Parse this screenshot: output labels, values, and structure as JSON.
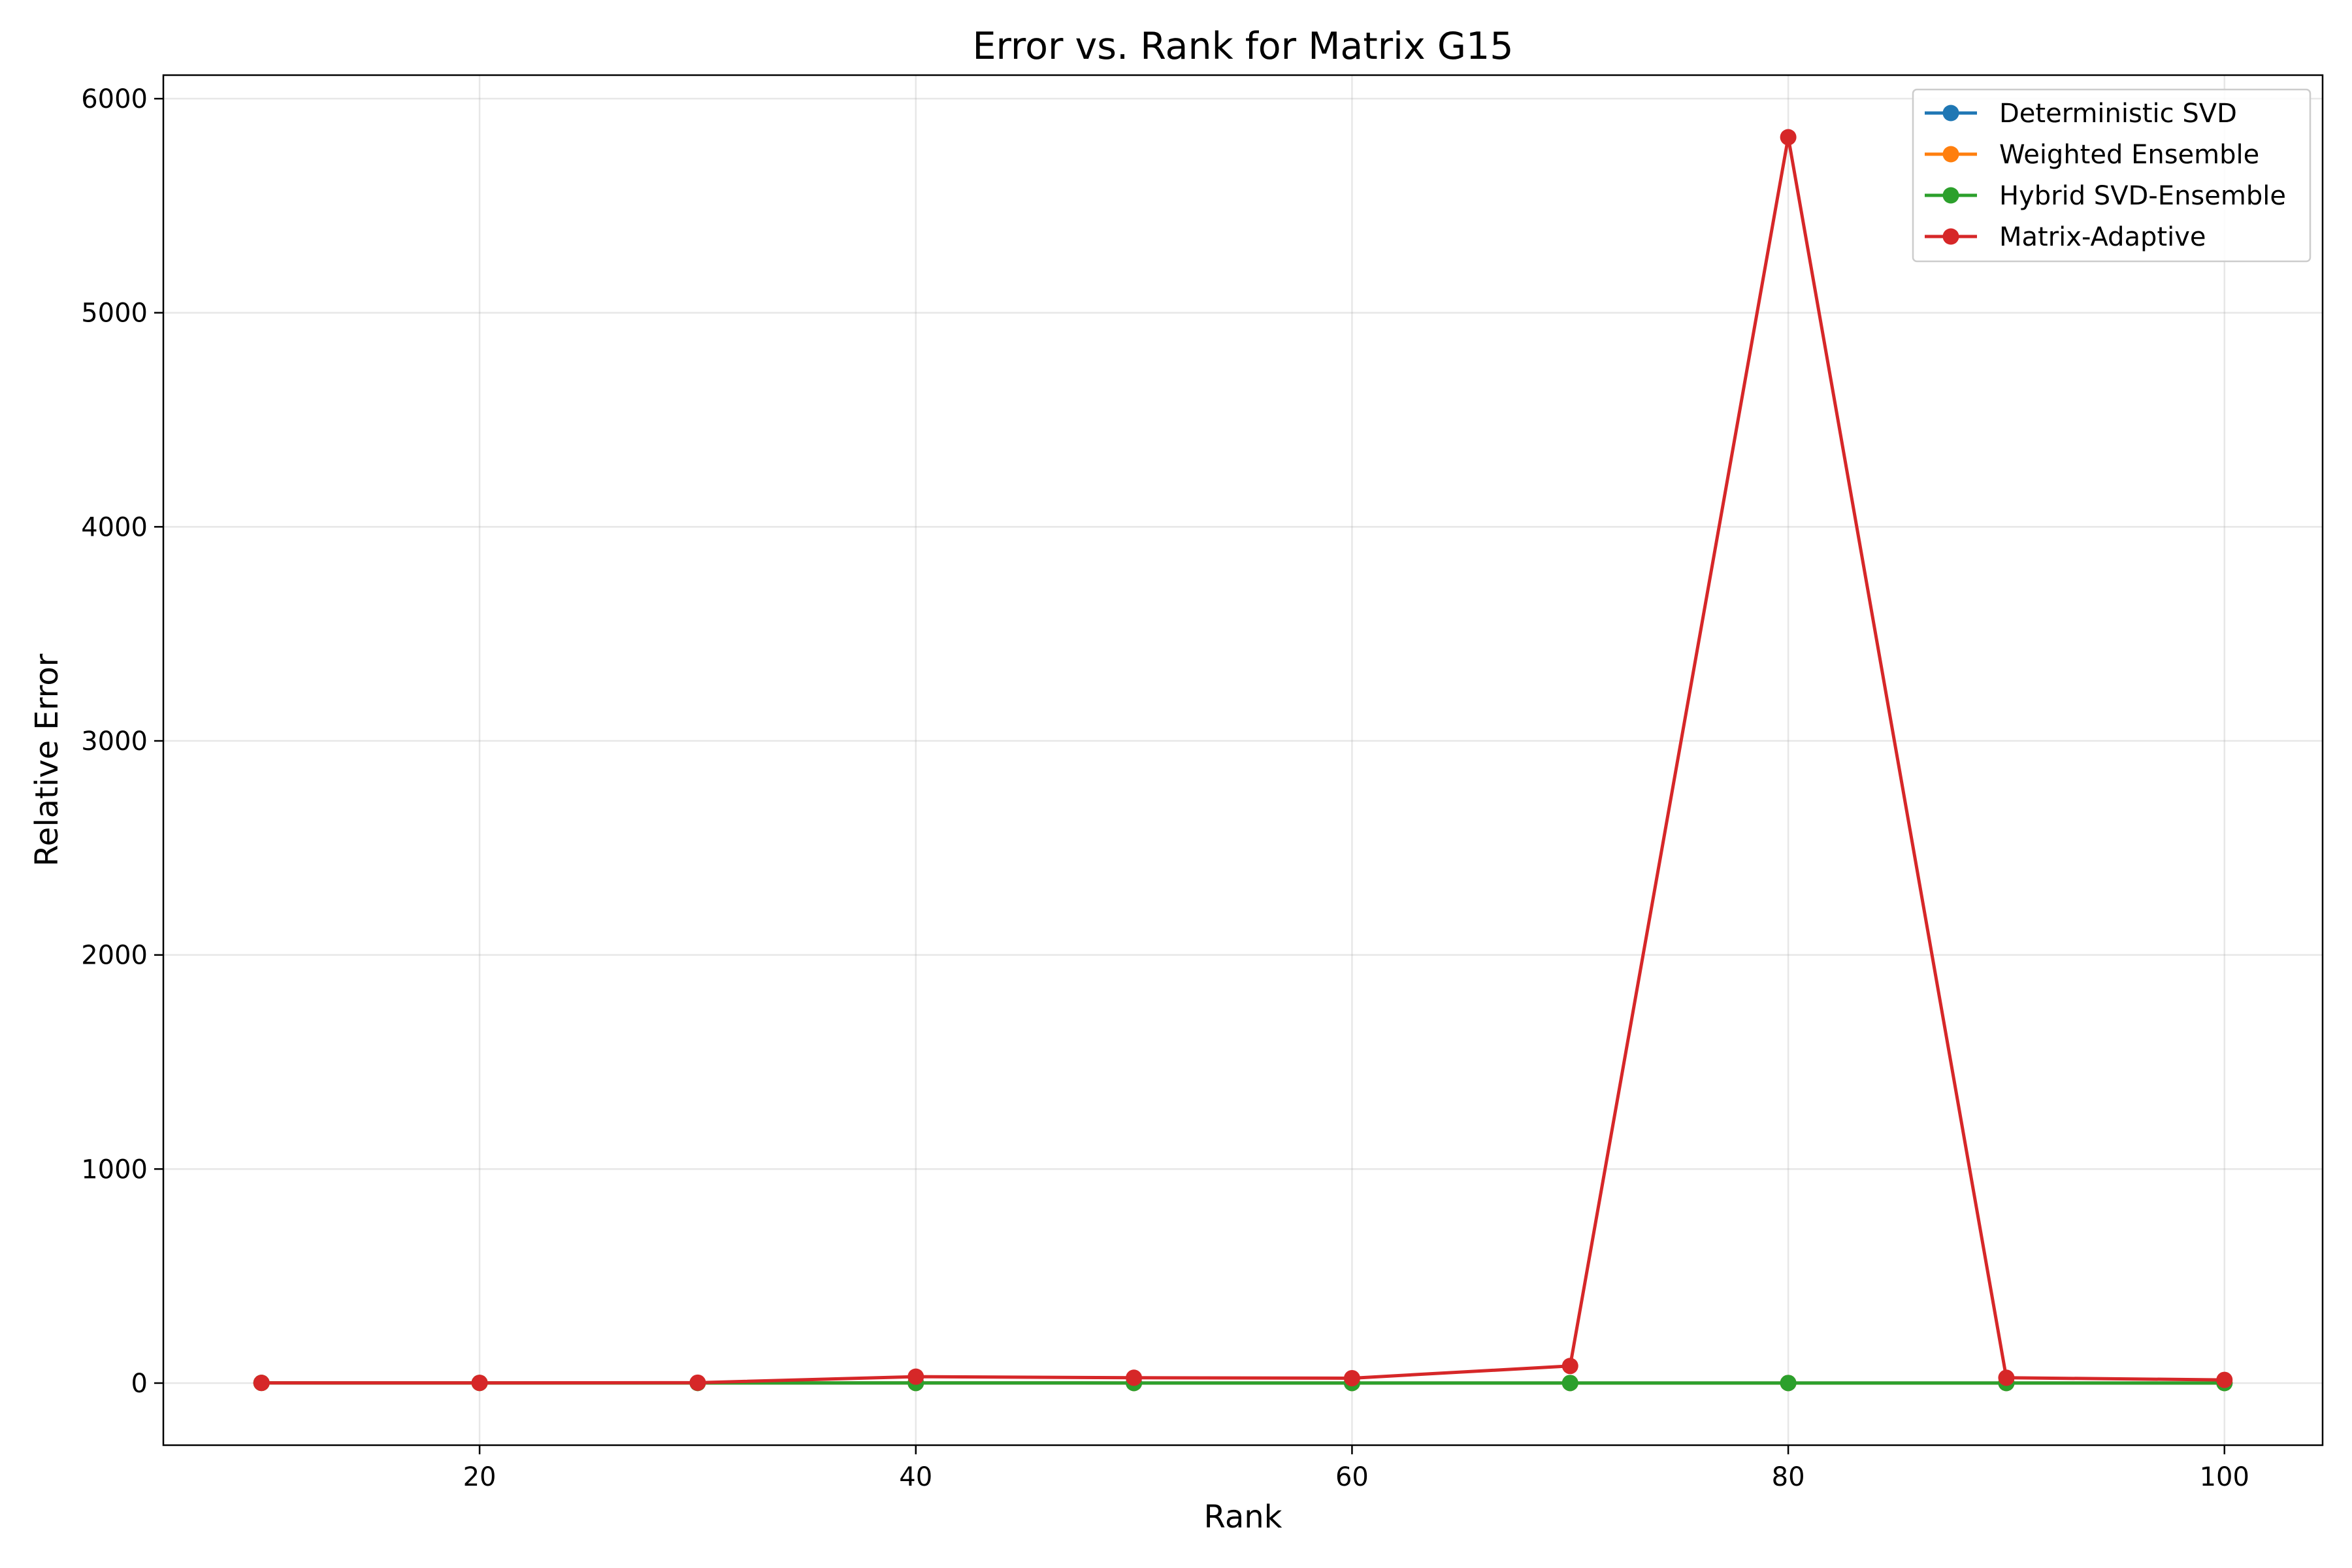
{
  "chart_data": {
    "type": "line",
    "title": "Error vs. Rank for Matrix G15",
    "xlabel": "Rank",
    "ylabel": "Relative Error",
    "xlim": [
      5.5,
      104.5
    ],
    "ylim": [
      -290,
      6110
    ],
    "xticks": [
      20,
      40,
      60,
      80,
      100
    ],
    "yticks": [
      0,
      1000,
      2000,
      3000,
      4000,
      5000,
      6000
    ],
    "grid": true,
    "legend_position": "top-right",
    "x": [
      10,
      20,
      30,
      40,
      50,
      60,
      70,
      80,
      90,
      100
    ],
    "series": [
      {
        "name": "Deterministic SVD",
        "color": "#1f77b4",
        "marker": "circle",
        "values": [
          0.9,
          0.8,
          0.7,
          0.6,
          0.5,
          0.5,
          0.4,
          0.4,
          0.3,
          0.3
        ]
      },
      {
        "name": "Weighted Ensemble",
        "color": "#ff7f0e",
        "marker": "circle",
        "values": [
          0.9,
          0.8,
          0.7,
          0.6,
          0.5,
          0.5,
          0.4,
          0.4,
          0.3,
          0.3
        ]
      },
      {
        "name": "Hybrid SVD-Ensemble",
        "color": "#2ca02c",
        "marker": "circle",
        "values": [
          0.9,
          0.8,
          0.7,
          0.6,
          0.5,
          0.5,
          0.4,
          0.4,
          0.3,
          0.3
        ]
      },
      {
        "name": "Matrix-Adaptive",
        "color": "#d62728",
        "marker": "circle",
        "values": [
          1,
          1,
          2,
          30,
          25,
          23,
          80,
          5820,
          25,
          15
        ]
      }
    ]
  }
}
